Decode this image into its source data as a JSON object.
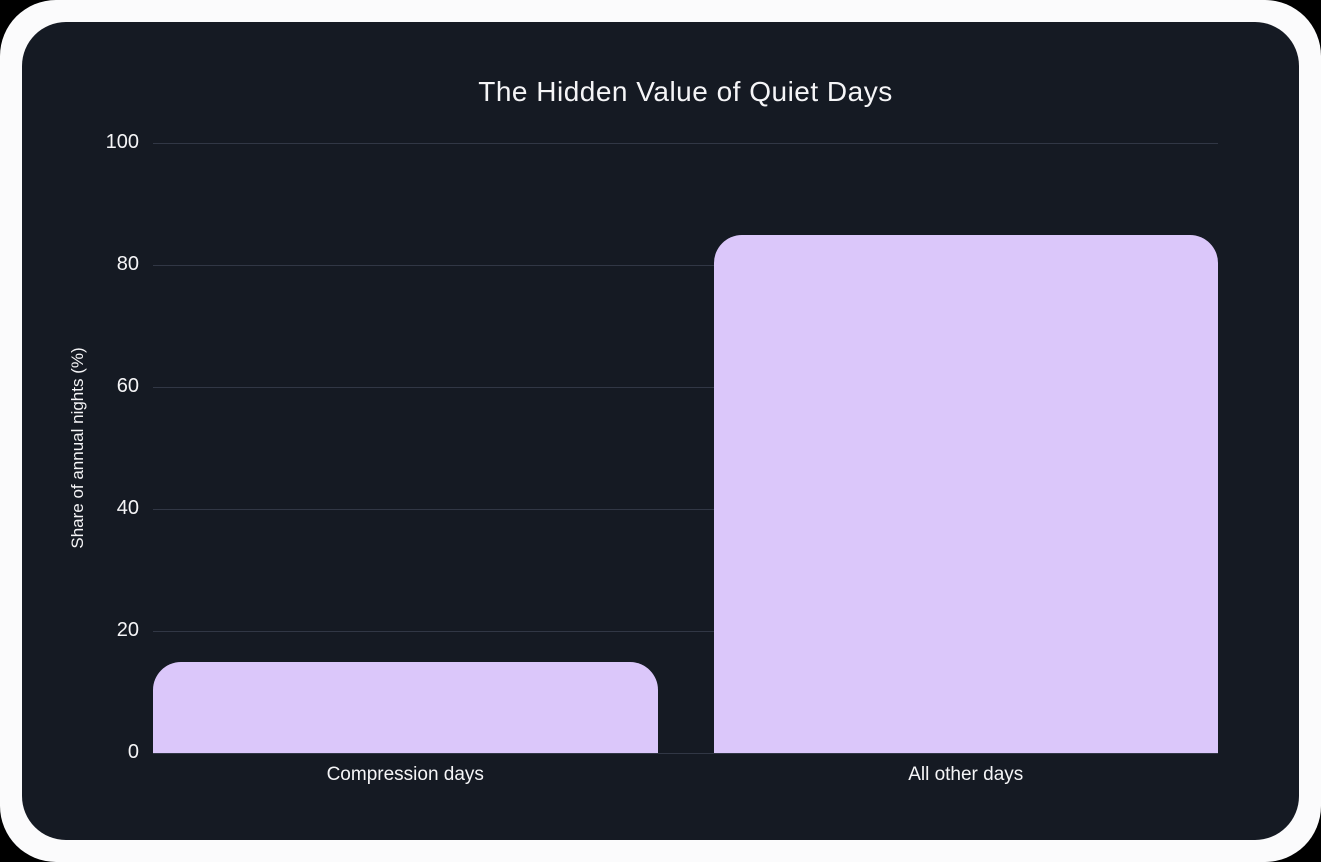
{
  "frame": {
    "outer_background": "#000000",
    "border_color": "#fbfbfc",
    "card_background": "#151a23"
  },
  "chart_data": {
    "type": "bar",
    "title": "The Hidden Value of Quiet Days",
    "categories": [
      "Compression days",
      "All other days"
    ],
    "values": [
      15,
      85
    ],
    "xlabel": "",
    "ylabel": "Share of annual nights (%)",
    "ylim": [
      0,
      100
    ],
    "yticks": [
      0,
      20,
      40,
      60,
      80,
      100
    ],
    "grid": true,
    "legend": false,
    "bar_color": "#dbc7fa",
    "gridline_color": "#313745",
    "text_color": "#f5f5f7"
  }
}
